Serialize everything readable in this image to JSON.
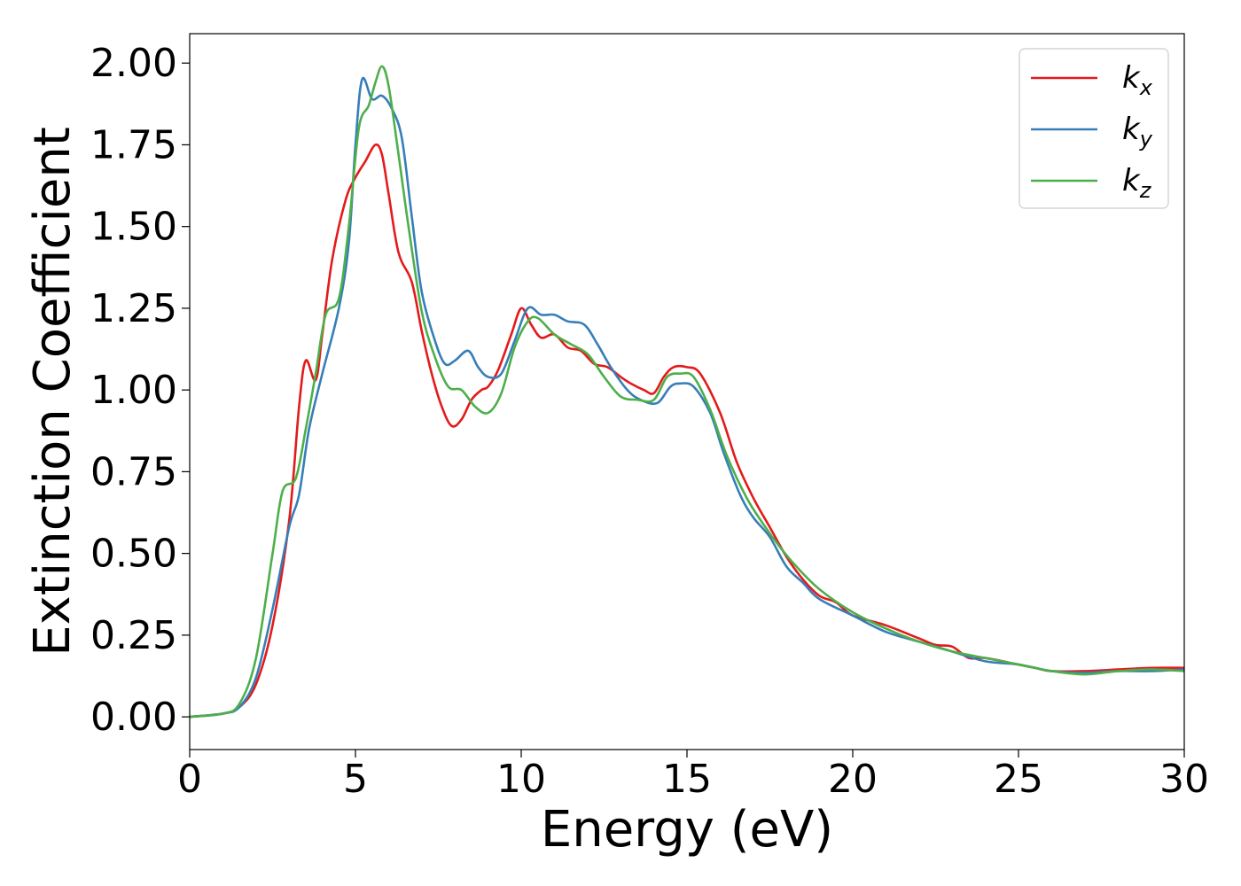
{
  "chart_data": {
    "type": "line",
    "title": "",
    "xlabel": "Energy (eV)",
    "ylabel": "Extinction Coefficient",
    "xlim": [
      0,
      30
    ],
    "ylim": [
      -0.1,
      2.09
    ],
    "x_ticks": [
      "0",
      "5",
      "10",
      "15",
      "20",
      "25",
      "30"
    ],
    "y_ticks": [
      "0.00",
      "0.25",
      "0.50",
      "0.75",
      "1.00",
      "1.25",
      "1.50",
      "1.75",
      "2.00"
    ],
    "grid": false,
    "legend_position": "top-right",
    "series": [
      {
        "name": "kx",
        "label_base": "k",
        "label_sub": "x",
        "color": "#e41a1c",
        "points": [
          [
            0,
            0.0
          ],
          [
            1,
            0.01
          ],
          [
            1.5,
            0.03
          ],
          [
            2,
            0.1
          ],
          [
            2.5,
            0.28
          ],
          [
            3,
            0.6
          ],
          [
            3.3,
            0.95
          ],
          [
            3.5,
            1.09
          ],
          [
            3.8,
            1.03
          ],
          [
            4,
            1.17
          ],
          [
            4.3,
            1.4
          ],
          [
            4.7,
            1.58
          ],
          [
            5,
            1.65
          ],
          [
            5.3,
            1.7
          ],
          [
            5.6,
            1.75
          ],
          [
            5.8,
            1.72
          ],
          [
            6,
            1.6
          ],
          [
            6.3,
            1.42
          ],
          [
            6.7,
            1.33
          ],
          [
            7,
            1.18
          ],
          [
            7.3,
            1.05
          ],
          [
            7.6,
            0.95
          ],
          [
            7.9,
            0.89
          ],
          [
            8.2,
            0.91
          ],
          [
            8.5,
            0.97
          ],
          [
            8.8,
            1.0
          ],
          [
            9,
            1.01
          ],
          [
            9.3,
            1.06
          ],
          [
            9.7,
            1.17
          ],
          [
            10,
            1.25
          ],
          [
            10.3,
            1.2
          ],
          [
            10.6,
            1.16
          ],
          [
            11,
            1.17
          ],
          [
            11.4,
            1.13
          ],
          [
            11.8,
            1.12
          ],
          [
            12.2,
            1.08
          ],
          [
            12.6,
            1.07
          ],
          [
            13,
            1.04
          ],
          [
            13.3,
            1.02
          ],
          [
            13.7,
            1.0
          ],
          [
            14,
            0.99
          ],
          [
            14.3,
            1.04
          ],
          [
            14.6,
            1.07
          ],
          [
            15,
            1.07
          ],
          [
            15.4,
            1.05
          ],
          [
            16,
            0.93
          ],
          [
            16.5,
            0.78
          ],
          [
            17,
            0.67
          ],
          [
            17.5,
            0.58
          ],
          [
            18,
            0.49
          ],
          [
            18.5,
            0.42
          ],
          [
            19,
            0.37
          ],
          [
            19.5,
            0.35
          ],
          [
            20,
            0.31
          ],
          [
            21,
            0.28
          ],
          [
            22,
            0.24
          ],
          [
            22.5,
            0.22
          ],
          [
            23,
            0.215
          ],
          [
            23.5,
            0.18
          ],
          [
            24,
            0.18
          ],
          [
            25,
            0.16
          ],
          [
            25.5,
            0.15
          ],
          [
            26,
            0.14
          ],
          [
            27,
            0.14
          ],
          [
            28,
            0.145
          ],
          [
            29,
            0.15
          ],
          [
            30,
            0.15
          ]
        ]
      },
      {
        "name": "ky",
        "label_base": "k",
        "label_sub": "y",
        "color": "#377eb8",
        "points": [
          [
            0,
            0.0
          ],
          [
            1,
            0.01
          ],
          [
            1.5,
            0.03
          ],
          [
            2,
            0.12
          ],
          [
            2.5,
            0.33
          ],
          [
            3,
            0.58
          ],
          [
            3.3,
            0.68
          ],
          [
            3.6,
            0.88
          ],
          [
            4,
            1.05
          ],
          [
            4.5,
            1.25
          ],
          [
            4.8,
            1.45
          ],
          [
            5,
            1.75
          ],
          [
            5.2,
            1.95
          ],
          [
            5.5,
            1.89
          ],
          [
            5.8,
            1.9
          ],
          [
            6.1,
            1.86
          ],
          [
            6.4,
            1.77
          ],
          [
            6.7,
            1.53
          ],
          [
            7,
            1.3
          ],
          [
            7.4,
            1.15
          ],
          [
            7.7,
            1.08
          ],
          [
            8,
            1.09
          ],
          [
            8.4,
            1.12
          ],
          [
            8.7,
            1.07
          ],
          [
            9,
            1.04
          ],
          [
            9.4,
            1.05
          ],
          [
            9.8,
            1.15
          ],
          [
            10.2,
            1.25
          ],
          [
            10.6,
            1.23
          ],
          [
            11,
            1.23
          ],
          [
            11.4,
            1.21
          ],
          [
            11.9,
            1.2
          ],
          [
            12.3,
            1.14
          ],
          [
            12.7,
            1.07
          ],
          [
            13.2,
            1.0
          ],
          [
            13.6,
            0.97
          ],
          [
            14.1,
            0.96
          ],
          [
            14.5,
            1.01
          ],
          [
            14.8,
            1.02
          ],
          [
            15.2,
            1.01
          ],
          [
            15.7,
            0.93
          ],
          [
            16.1,
            0.81
          ],
          [
            16.6,
            0.68
          ],
          [
            17,
            0.61
          ],
          [
            17.5,
            0.55
          ],
          [
            18,
            0.46
          ],
          [
            18.5,
            0.41
          ],
          [
            19,
            0.36
          ],
          [
            20,
            0.31
          ],
          [
            21,
            0.26
          ],
          [
            22,
            0.23
          ],
          [
            23,
            0.2
          ],
          [
            24,
            0.17
          ],
          [
            25,
            0.16
          ],
          [
            26,
            0.14
          ],
          [
            27,
            0.135
          ],
          [
            28,
            0.14
          ],
          [
            29,
            0.14
          ],
          [
            30,
            0.145
          ]
        ]
      },
      {
        "name": "kz",
        "label_base": "k",
        "label_sub": "z",
        "color": "#4daf4a",
        "points": [
          [
            0,
            0.0
          ],
          [
            1,
            0.01
          ],
          [
            1.5,
            0.04
          ],
          [
            2,
            0.18
          ],
          [
            2.5,
            0.5
          ],
          [
            2.8,
            0.69
          ],
          [
            3.2,
            0.73
          ],
          [
            3.5,
            0.88
          ],
          [
            3.8,
            1.05
          ],
          [
            4.1,
            1.23
          ],
          [
            4.5,
            1.28
          ],
          [
            4.8,
            1.5
          ],
          [
            5.1,
            1.8
          ],
          [
            5.4,
            1.87
          ],
          [
            5.6,
            1.94
          ],
          [
            5.8,
            1.99
          ],
          [
            6,
            1.93
          ],
          [
            6.3,
            1.72
          ],
          [
            6.6,
            1.5
          ],
          [
            7,
            1.24
          ],
          [
            7.4,
            1.1
          ],
          [
            7.8,
            1.01
          ],
          [
            8.2,
            1.0
          ],
          [
            8.6,
            0.95
          ],
          [
            9,
            0.93
          ],
          [
            9.4,
            0.99
          ],
          [
            9.8,
            1.13
          ],
          [
            10.2,
            1.21
          ],
          [
            10.5,
            1.22
          ],
          [
            11,
            1.17
          ],
          [
            11.5,
            1.14
          ],
          [
            12,
            1.11
          ],
          [
            12.5,
            1.04
          ],
          [
            13,
            0.98
          ],
          [
            13.5,
            0.97
          ],
          [
            14,
            0.97
          ],
          [
            14.4,
            1.04
          ],
          [
            14.8,
            1.05
          ],
          [
            15.2,
            1.04
          ],
          [
            15.7,
            0.94
          ],
          [
            16.2,
            0.8
          ],
          [
            16.8,
            0.67
          ],
          [
            17.3,
            0.59
          ],
          [
            17.8,
            0.52
          ],
          [
            18.3,
            0.46
          ],
          [
            19,
            0.39
          ],
          [
            20,
            0.32
          ],
          [
            21,
            0.27
          ],
          [
            22,
            0.23
          ],
          [
            23,
            0.2
          ],
          [
            24,
            0.18
          ],
          [
            25,
            0.16
          ],
          [
            25.5,
            0.15
          ],
          [
            26,
            0.14
          ],
          [
            27,
            0.13
          ],
          [
            28,
            0.14
          ],
          [
            29,
            0.145
          ],
          [
            30,
            0.14
          ]
        ]
      }
    ]
  }
}
